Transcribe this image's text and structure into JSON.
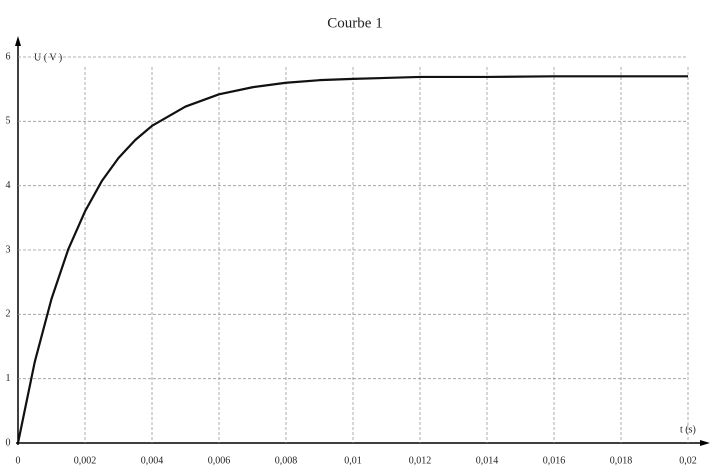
{
  "chart_data": {
    "type": "line",
    "title": "Courbe 1",
    "x_label": "t (s)",
    "y_label": "U ( V )",
    "x": [
      0,
      0.0005,
      0.001,
      0.0015,
      0.002,
      0.0025,
      0.003,
      0.0035,
      0.004,
      0.005,
      0.006,
      0.007,
      0.008,
      0.009,
      0.01,
      0.012,
      0.014,
      0.016,
      0.02
    ],
    "series": [
      {
        "name": "U",
        "color": "#111111",
        "values": [
          0,
          1.26,
          2.24,
          3.01,
          3.6,
          4.07,
          4.43,
          4.71,
          4.93,
          5.23,
          5.42,
          5.53,
          5.6,
          5.64,
          5.66,
          5.69,
          5.69,
          5.7,
          5.7
        ]
      }
    ],
    "xlim": [
      0,
      0.02
    ],
    "xticks": [
      0,
      {
        "value": 0.002,
        "label": "0,002"
      },
      {
        "value": 0.004,
        "label": "0,004"
      },
      {
        "value": 0.006,
        "label": "0,006"
      },
      {
        "value": 0.008,
        "label": "0,008"
      },
      {
        "value": 0.01,
        "label": "0,01"
      },
      {
        "value": 0.012,
        "label": "0,012"
      },
      {
        "value": 0.014,
        "label": "0,014"
      },
      {
        "value": 0.016,
        "label": "0,016"
      },
      {
        "value": 0.018,
        "label": "0,018"
      },
      {
        "value": 0.02,
        "label": "0,02"
      }
    ],
    "ylim": [
      0,
      6
    ],
    "yticks": [
      0,
      1,
      2,
      3,
      4,
      5,
      6
    ],
    "grid": true
  }
}
